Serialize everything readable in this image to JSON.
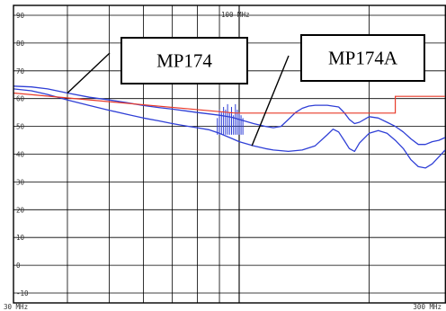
{
  "chart_data": {
    "type": "line",
    "x_scale": "log",
    "x_unit": "MHz",
    "xlim": [
      30,
      300
    ],
    "ylim": [
      -15,
      93
    ],
    "y_ticks": [
      -10,
      0,
      10,
      20,
      30,
      40,
      50,
      60,
      70,
      80,
      90
    ],
    "y_tick_labels": [
      "-10",
      "0",
      "10",
      "20",
      "30",
      "40",
      "50",
      "60",
      "70",
      "80",
      "90"
    ],
    "x_tick_labels": [
      {
        "x": 30,
        "label": "30 MHz"
      },
      {
        "x": 100,
        "label": "100 MHz"
      },
      {
        "x": 300,
        "label": "300 MHz"
      }
    ],
    "grid": true,
    "x_grid": [
      30,
      40,
      50,
      60,
      70,
      80,
      90,
      100,
      200,
      300
    ],
    "annotations": [
      {
        "text": "MP174",
        "target": [
          40,
          62
        ]
      },
      {
        "text": "MP174A",
        "target": [
          107,
          43
        ]
      }
    ],
    "limit_line": {
      "color": "#e83a2a",
      "points": [
        [
          30,
          62
        ],
        [
          98,
          54.8
        ],
        [
          230,
          54.8
        ],
        [
          230,
          60.8
        ],
        [
          300,
          60.8
        ]
      ]
    },
    "series": [
      {
        "color": "#2f3fd6",
        "points": [
          [
            30,
            64.5
          ],
          [
            33,
            64.2
          ],
          [
            36,
            63.5
          ],
          [
            40,
            62
          ],
          [
            45,
            60.5
          ],
          [
            50,
            59.5
          ],
          [
            55,
            58.5
          ],
          [
            60,
            57.5
          ],
          [
            65,
            56.8
          ],
          [
            70,
            56.2
          ],
          [
            75,
            55.6
          ],
          [
            80,
            55
          ],
          [
            85,
            54.5
          ],
          [
            90,
            54
          ],
          [
            96,
            53.3
          ],
          [
            100,
            52.5
          ],
          [
            108,
            51
          ],
          [
            115,
            50
          ],
          [
            120,
            49.5
          ],
          [
            125,
            50
          ],
          [
            130,
            52.5
          ],
          [
            135,
            55
          ],
          [
            140,
            56.5
          ],
          [
            145,
            57.3
          ],
          [
            150,
            57.6
          ],
          [
            160,
            57.6
          ],
          [
            170,
            57
          ],
          [
            175,
            55
          ],
          [
            180,
            52.5
          ],
          [
            185,
            51
          ],
          [
            190,
            51.5
          ],
          [
            200,
            53.5
          ],
          [
            210,
            53
          ],
          [
            220,
            51.5
          ],
          [
            230,
            50
          ],
          [
            240,
            48
          ],
          [
            250,
            45.5
          ],
          [
            260,
            43.5
          ],
          [
            270,
            43.5
          ],
          [
            280,
            44.5
          ],
          [
            290,
            45
          ],
          [
            300,
            46
          ]
        ]
      },
      {
        "color": "#2f3fd6",
        "points": [
          [
            30,
            63.5
          ],
          [
            33,
            62.8
          ],
          [
            36,
            61.5
          ],
          [
            40,
            59.5
          ],
          [
            45,
            57.5
          ],
          [
            50,
            55.8
          ],
          [
            55,
            54.3
          ],
          [
            60,
            53
          ],
          [
            65,
            52
          ],
          [
            70,
            51
          ],
          [
            75,
            50.2
          ],
          [
            80,
            49.5
          ],
          [
            85,
            48.8
          ],
          [
            90,
            47.5
          ],
          [
            95,
            46
          ],
          [
            100,
            44.5
          ],
          [
            108,
            43
          ],
          [
            115,
            42
          ],
          [
            120,
            41.5
          ],
          [
            130,
            41
          ],
          [
            140,
            41.5
          ],
          [
            150,
            43
          ],
          [
            160,
            47
          ],
          [
            165,
            49
          ],
          [
            170,
            48
          ],
          [
            175,
            45
          ],
          [
            180,
            42
          ],
          [
            185,
            41
          ],
          [
            190,
            44
          ],
          [
            200,
            47.5
          ],
          [
            210,
            48.5
          ],
          [
            220,
            47.5
          ],
          [
            230,
            45
          ],
          [
            240,
            42
          ],
          [
            250,
            38
          ],
          [
            260,
            35.5
          ],
          [
            270,
            35
          ],
          [
            280,
            36.5
          ],
          [
            290,
            39
          ],
          [
            300,
            41.5
          ]
        ]
      },
      {
        "color": "#2f3fd6",
        "style": "spikes",
        "x_range": [
          88,
          103
        ],
        "floor": 47,
        "peaks": [
          [
            89,
            53
          ],
          [
            90,
            56
          ],
          [
            91,
            55
          ],
          [
            92,
            57
          ],
          [
            93,
            56
          ],
          [
            94,
            58
          ],
          [
            95,
            55
          ],
          [
            96,
            57
          ],
          [
            97,
            54
          ],
          [
            98,
            58
          ],
          [
            99,
            56
          ],
          [
            100,
            55
          ],
          [
            101,
            54
          ],
          [
            102,
            53
          ]
        ]
      }
    ]
  }
}
